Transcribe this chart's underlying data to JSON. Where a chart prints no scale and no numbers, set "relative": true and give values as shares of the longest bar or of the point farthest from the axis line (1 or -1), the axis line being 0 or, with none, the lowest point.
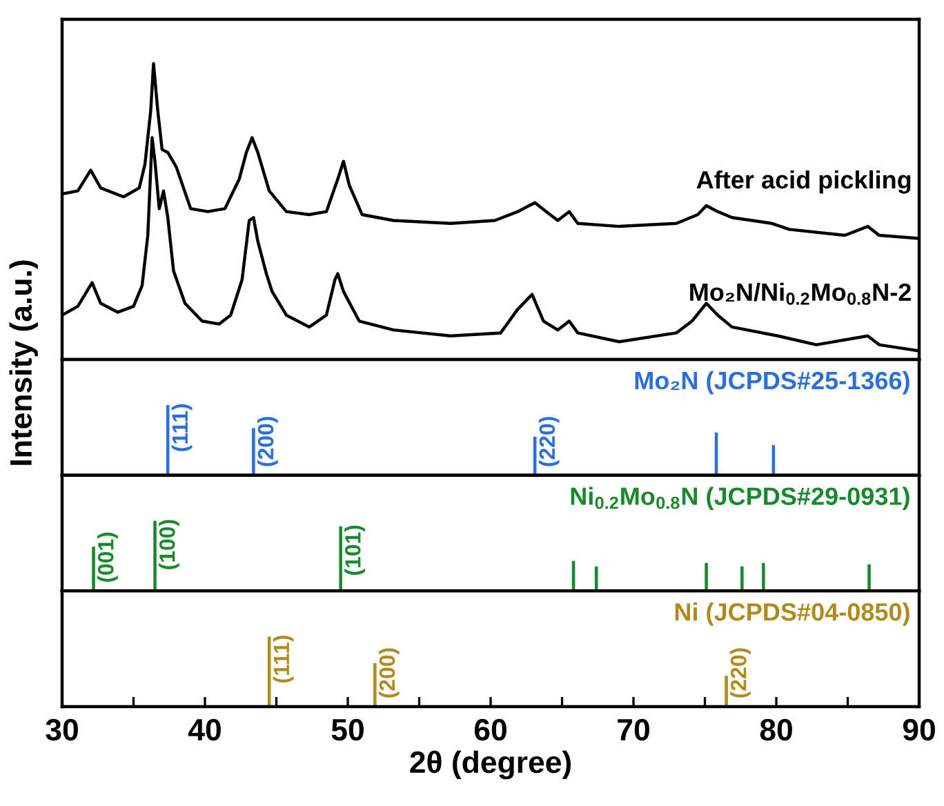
{
  "chart_data": [
    {
      "type": "line",
      "relative": true,
      "ylabel": "Intensity (a.u.)",
      "xlim": [
        30,
        90
      ],
      "tick_labels": false,
      "line_style": "solid",
      "marker": "none",
      "series": [
        {
          "name": "After acid pickling",
          "color": "#000000",
          "x": [
            30.0,
            31.1,
            32.0,
            32.7,
            34.3,
            35.4,
            35.8,
            36.2,
            36.4,
            36.7,
            37.0,
            37.4,
            38.0,
            39.0,
            40.2,
            41.4,
            42.4,
            42.9,
            43.3,
            43.7,
            44.5,
            45.7,
            47.3,
            48.5,
            49.3,
            49.7,
            50.1,
            51.0,
            53.2,
            57.2,
            60.3,
            61.9,
            63.1,
            63.9,
            64.7,
            65.5,
            66.1,
            69.0,
            73.0,
            74.5,
            75.1,
            75.9,
            76.9,
            79.7,
            80.9,
            84.8,
            86.4,
            87.2,
            89.9
          ],
          "values": [
            0.56,
            0.57,
            0.64,
            0.58,
            0.55,
            0.58,
            0.66,
            0.84,
            1.0,
            0.84,
            0.71,
            0.7,
            0.65,
            0.51,
            0.5,
            0.51,
            0.61,
            0.7,
            0.75,
            0.7,
            0.57,
            0.5,
            0.49,
            0.5,
            0.61,
            0.67,
            0.59,
            0.49,
            0.47,
            0.46,
            0.47,
            0.5,
            0.53,
            0.5,
            0.47,
            0.5,
            0.46,
            0.45,
            0.46,
            0.49,
            0.52,
            0.5,
            0.48,
            0.46,
            0.44,
            0.42,
            0.45,
            0.42,
            0.41
          ]
        },
        {
          "name": "Mo₂N/Ni$_{0.2}$Mo$_{0.8}$N-2",
          "color": "#000000",
          "x": [
            30.0,
            31.1,
            32.1,
            32.7,
            33.9,
            35.0,
            35.6,
            36.0,
            36.3,
            36.5,
            36.8,
            37.1,
            37.4,
            37.8,
            38.6,
            39.8,
            41.0,
            41.8,
            42.6,
            43.1,
            43.4,
            43.7,
            44.3,
            44.7,
            45.7,
            47.3,
            48.5,
            49.1,
            49.3,
            49.7,
            50.8,
            53.2,
            57.2,
            60.7,
            61.9,
            62.9,
            63.7,
            64.7,
            65.5,
            66.1,
            69.0,
            73.0,
            74.1,
            75.1,
            75.9,
            76.9,
            80.1,
            82.8,
            86.4,
            87.2,
            89.9
          ],
          "values": [
            0.15,
            0.18,
            0.26,
            0.19,
            0.16,
            0.18,
            0.25,
            0.42,
            0.75,
            0.67,
            0.51,
            0.57,
            0.48,
            0.3,
            0.19,
            0.13,
            0.12,
            0.15,
            0.27,
            0.47,
            0.48,
            0.4,
            0.29,
            0.23,
            0.15,
            0.11,
            0.15,
            0.27,
            0.29,
            0.23,
            0.13,
            0.1,
            0.08,
            0.09,
            0.17,
            0.22,
            0.13,
            0.1,
            0.13,
            0.09,
            0.06,
            0.09,
            0.13,
            0.19,
            0.15,
            0.11,
            0.08,
            0.05,
            0.08,
            0.05,
            0.03
          ]
        }
      ]
    },
    {
      "type": "bar",
      "relative": true,
      "xlim": [
        30,
        90
      ],
      "tick_labels": false,
      "series": [
        {
          "name": "Mo₂N (JCPDS#25-1366)",
          "color": "#2a6fdc",
          "x": [
            37.4,
            43.4,
            63.1,
            75.8,
            79.8
          ],
          "values": [
            1,
            0.67,
            0.55,
            0.61,
            0.43
          ]
        }
      ],
      "annotations": [
        {
          "text": "(111)",
          "x": 37.4,
          "y": 1
        },
        {
          "text": "(200)",
          "x": 43.4,
          "y": 0.67
        },
        {
          "text": "(220)",
          "x": 63.1,
          "y": 0.55
        }
      ]
    },
    {
      "type": "bar",
      "relative": true,
      "xlim": [
        30,
        90
      ],
      "tick_labels": false,
      "series": [
        {
          "name": "Ni$_{0.2}$Mo$_{0.8}$N (JCPDS#29-0931)",
          "color": "#178a2c",
          "x": [
            32.2,
            36.5,
            49.5,
            65.8,
            67.4,
            75.1,
            77.6,
            79.1,
            86.5
          ],
          "values": [
            0.63,
            1,
            0.92,
            0.43,
            0.35,
            0.4,
            0.35,
            0.4,
            0.38
          ]
        }
      ],
      "annotations": [
        {
          "text": "(001)",
          "x": 32.2,
          "y": 0.63
        },
        {
          "text": "(100)",
          "x": 36.5,
          "y": 1
        },
        {
          "text": "(101)",
          "x": 49.5,
          "y": 0.92
        }
      ]
    },
    {
      "type": "bar",
      "relative": true,
      "xlim": [
        30,
        90
      ],
      "tick_labels": "x",
      "xlabel": "2θ (degree)",
      "xticks": [
        30,
        {
          "value": 35,
          "label": null
        },
        40,
        {
          "value": 45,
          "label": null
        },
        50,
        {
          "value": 55,
          "label": null
        },
        60,
        {
          "value": 65,
          "label": null
        },
        70,
        {
          "value": 75,
          "label": null
        },
        80,
        {
          "value": 85,
          "label": null
        },
        90
      ],
      "series": [
        {
          "name": "Ni (JCPDS#04-0850)",
          "color": "#b08a1c",
          "x": [
            44.5,
            51.9,
            76.5
          ],
          "values": [
            1,
            0.62,
            0.44
          ]
        }
      ],
      "annotations": [
        {
          "text": "(111)",
          "x": 44.5,
          "y": 1
        },
        {
          "text": "(200)",
          "x": 51.9,
          "y": 0.62
        },
        {
          "text": "(220)",
          "x": 76.5,
          "y": 0.44
        }
      ]
    }
  ]
}
